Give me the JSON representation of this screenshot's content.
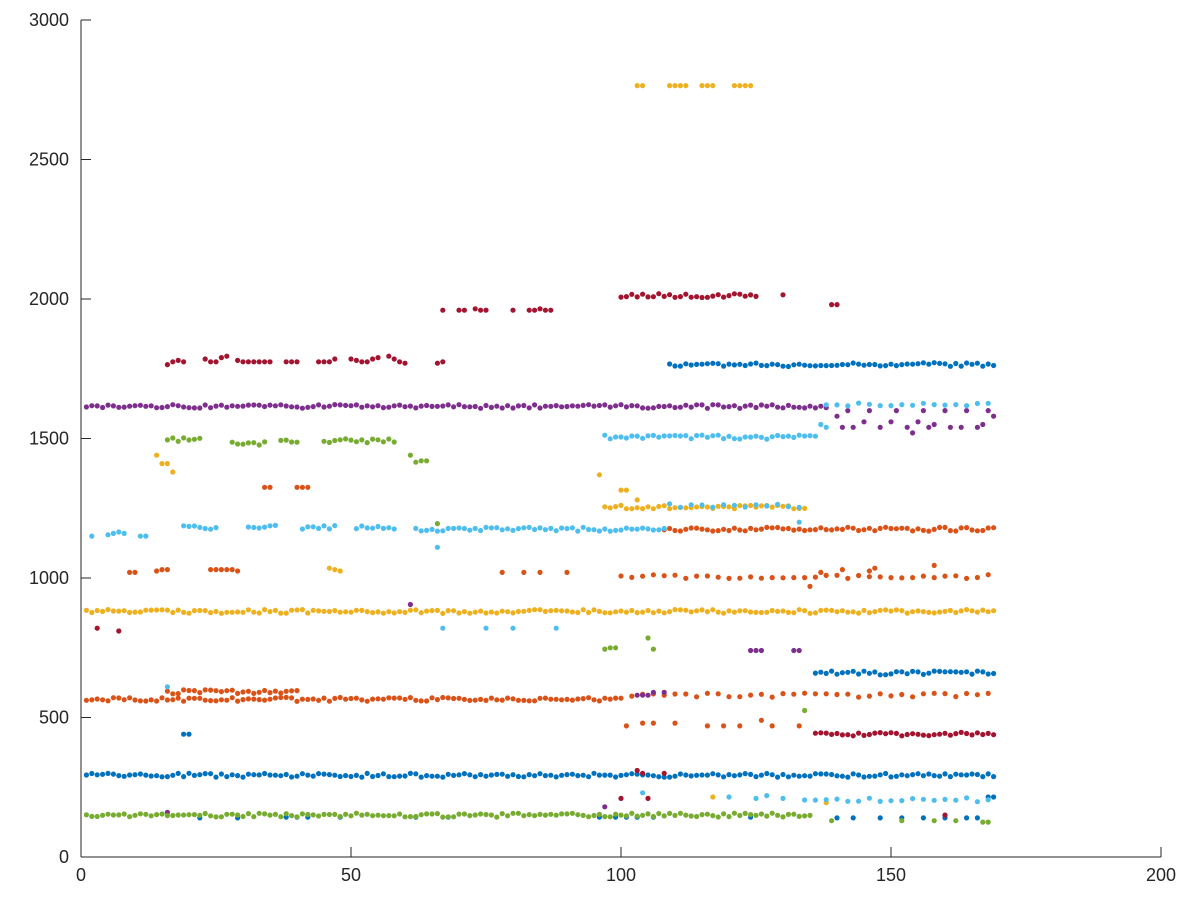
{
  "chart_data": {
    "type": "scatter",
    "title": "",
    "xlabel": "",
    "ylabel": "",
    "xlim": [
      0,
      200
    ],
    "ylim": [
      0,
      3000
    ],
    "xticks": [
      "0",
      "50",
      "100",
      "150",
      "200"
    ],
    "yticks": [
      "0",
      "500",
      "1000",
      "1500",
      "2000",
      "2500",
      "3000"
    ],
    "grid": false,
    "legend": "none",
    "series": [
      {
        "color": "#0072BD",
        "segments": [
          {
            "x0": 1,
            "x1": 169,
            "y": 293,
            "step": 1
          },
          {
            "x0": 109,
            "x1": 169,
            "y": 1765,
            "step": 1
          },
          {
            "x0": 136,
            "x1": 169,
            "y": 660,
            "step": 1
          }
        ],
        "points": [
          [
            19,
            440
          ],
          [
            20,
            440
          ],
          [
            22,
            140
          ],
          [
            29,
            140
          ],
          [
            38,
            143
          ],
          [
            40,
            143
          ],
          [
            42,
            143
          ],
          [
            48,
            143
          ],
          [
            62,
            143
          ],
          [
            68,
            143
          ],
          [
            96,
            143
          ],
          [
            99,
            143
          ],
          [
            101,
            143
          ],
          [
            103,
            143
          ],
          [
            106,
            143
          ],
          [
            124,
            143
          ],
          [
            140,
            140
          ],
          [
            143,
            140
          ],
          [
            148,
            140
          ],
          [
            152,
            140
          ],
          [
            156,
            140
          ],
          [
            160,
            140
          ],
          [
            164,
            140
          ],
          [
            166,
            140
          ],
          [
            168,
            215
          ],
          [
            169,
            215
          ]
        ]
      },
      {
        "color": "#D95319",
        "segments": [
          {
            "x0": 1,
            "x1": 100,
            "y": 565,
            "step": 1
          },
          {
            "x0": 16,
            "x1": 40,
            "y": 592,
            "step": 1
          },
          {
            "x0": 100,
            "x1": 169,
            "y": 1005,
            "step": 2
          },
          {
            "x0": 108,
            "x1": 169,
            "y": 1175,
            "step": 1
          },
          {
            "x0": 102,
            "x1": 169,
            "y": 580,
            "step": 2
          }
        ],
        "points": [
          [
            9,
            1020
          ],
          [
            10,
            1020
          ],
          [
            14,
            1025
          ],
          [
            15,
            1030
          ],
          [
            16,
            1030
          ],
          [
            24,
            1030
          ],
          [
            25,
            1030
          ],
          [
            26,
            1030
          ],
          [
            27,
            1030
          ],
          [
            28,
            1030
          ],
          [
            29,
            1025
          ],
          [
            34,
            1325
          ],
          [
            35,
            1325
          ],
          [
            40,
            1325
          ],
          [
            41,
            1325
          ],
          [
            42,
            1325
          ],
          [
            78,
            1020
          ],
          [
            82,
            1020
          ],
          [
            85,
            1020
          ],
          [
            90,
            1020
          ],
          [
            104,
            480
          ],
          [
            106,
            480
          ],
          [
            110,
            480
          ],
          [
            116,
            470
          ],
          [
            119,
            470
          ],
          [
            122,
            470
          ],
          [
            126,
            490
          ],
          [
            128,
            470
          ],
          [
            133,
            470
          ],
          [
            135,
            970
          ],
          [
            137,
            1020
          ],
          [
            141,
            1030
          ],
          [
            146,
            1025
          ],
          [
            147,
            1035
          ],
          [
            158,
            1045
          ],
          [
            101,
            470
          ]
        ]
      },
      {
        "color": "#EDB120",
        "segments": [
          {
            "x0": 1,
            "x1": 169,
            "y": 880,
            "step": 1
          },
          {
            "x0": 97,
            "x1": 134,
            "y": 1255,
            "step": 1
          }
        ],
        "points": [
          [
            14,
            1440
          ],
          [
            15,
            1410
          ],
          [
            16,
            1410
          ],
          [
            17,
            1380
          ],
          [
            46,
            1035
          ],
          [
            47,
            1030
          ],
          [
            48,
            1025
          ],
          [
            96,
            1370
          ],
          [
            100,
            1315
          ],
          [
            101,
            1315
          ],
          [
            103,
            1280
          ],
          [
            103,
            2765
          ],
          [
            104,
            2765
          ],
          [
            109,
            2765
          ],
          [
            110,
            2765
          ],
          [
            111,
            2765
          ],
          [
            112,
            2765
          ],
          [
            115,
            2765
          ],
          [
            116,
            2765
          ],
          [
            117,
            2765
          ],
          [
            121,
            2765
          ],
          [
            122,
            2765
          ],
          [
            123,
            2765
          ],
          [
            124,
            2765
          ],
          [
            117,
            215
          ],
          [
            138,
            195
          ]
        ]
      },
      {
        "color": "#7E2F8E",
        "segments": [
          {
            "x0": 1,
            "x1": 138,
            "y": 1615,
            "step": 1
          }
        ],
        "points": [
          [
            61,
            905
          ],
          [
            97,
            180
          ],
          [
            104,
            580
          ],
          [
            105,
            580
          ],
          [
            106,
            590
          ],
          [
            108,
            590
          ],
          [
            124,
            740
          ],
          [
            125,
            740
          ],
          [
            126,
            740
          ],
          [
            132,
            740
          ],
          [
            133,
            740
          ],
          [
            103,
            580
          ],
          [
            140,
            1580
          ],
          [
            141,
            1540
          ],
          [
            142,
            1600
          ],
          [
            143,
            1540
          ],
          [
            145,
            1560
          ],
          [
            146,
            1600
          ],
          [
            148,
            1540
          ],
          [
            150,
            1560
          ],
          [
            151,
            1600
          ],
          [
            153,
            1540
          ],
          [
            154,
            1520
          ],
          [
            155,
            1560
          ],
          [
            156,
            1600
          ],
          [
            157,
            1540
          ],
          [
            158,
            1550
          ],
          [
            160,
            1600
          ],
          [
            161,
            1540
          ],
          [
            163,
            1540
          ],
          [
            164,
            1600
          ],
          [
            166,
            1540
          ],
          [
            167,
            1550
          ],
          [
            168,
            1600
          ],
          [
            169,
            1580
          ],
          [
            16,
            160
          ]
        ]
      },
      {
        "color": "#77AC30",
        "segments": [
          {
            "x0": 1,
            "x1": 135,
            "y": 150,
            "step": 1
          },
          {
            "x0": 16,
            "x1": 22,
            "y": 1495,
            "step": 1
          },
          {
            "x0": 28,
            "x1": 34,
            "y": 1482,
            "step": 1
          },
          {
            "x0": 37,
            "x1": 40,
            "y": 1488,
            "step": 1
          },
          {
            "x0": 45,
            "x1": 58,
            "y": 1492,
            "step": 1
          }
        ],
        "points": [
          [
            61,
            1440
          ],
          [
            62,
            1415
          ],
          [
            63,
            1420
          ],
          [
            64,
            1420
          ],
          [
            66,
            1195
          ],
          [
            97,
            745
          ],
          [
            98,
            750
          ],
          [
            99,
            750
          ],
          [
            105,
            785
          ],
          [
            106,
            745
          ],
          [
            134,
            525
          ],
          [
            139,
            130
          ],
          [
            152,
            130
          ],
          [
            158,
            130
          ],
          [
            162,
            130
          ],
          [
            167,
            125
          ],
          [
            168,
            125
          ]
        ]
      },
      {
        "color": "#4DBEEE",
        "segments": [
          {
            "x0": 19,
            "x1": 25,
            "y": 1182,
            "step": 1
          },
          {
            "x0": 31,
            "x1": 36,
            "y": 1182,
            "step": 1
          },
          {
            "x0": 41,
            "x1": 47,
            "y": 1182,
            "step": 1
          },
          {
            "x0": 51,
            "x1": 58,
            "y": 1182,
            "step": 1
          },
          {
            "x0": 62,
            "x1": 108,
            "y": 1175,
            "step": 1
          },
          {
            "x0": 97,
            "x1": 136,
            "y": 1505,
            "step": 1
          },
          {
            "x0": 109,
            "x1": 134,
            "y": 1260,
            "step": 2
          },
          {
            "x0": 138,
            "x1": 169,
            "y": 1620,
            "step": 2
          },
          {
            "x0": 134,
            "x1": 169,
            "y": 205,
            "step": 2
          }
        ],
        "points": [
          [
            2,
            1150
          ],
          [
            5,
            1155
          ],
          [
            6,
            1160
          ],
          [
            7,
            1165
          ],
          [
            8,
            1160
          ],
          [
            11,
            1150
          ],
          [
            12,
            1150
          ],
          [
            16,
            610
          ],
          [
            66,
            1110
          ],
          [
            67,
            820
          ],
          [
            75,
            820
          ],
          [
            80,
            820
          ],
          [
            88,
            820
          ],
          [
            104,
            230
          ],
          [
            120,
            215
          ],
          [
            125,
            210
          ],
          [
            127,
            220
          ],
          [
            130,
            210
          ],
          [
            133,
            1200
          ],
          [
            137,
            1550
          ],
          [
            138,
            1540
          ]
        ]
      },
      {
        "color": "#A2142F",
        "segments": [
          {
            "x0": 100,
            "x1": 125,
            "y": 2012,
            "step": 1
          },
          {
            "x0": 136,
            "x1": 169,
            "y": 440,
            "step": 1
          }
        ],
        "points": [
          [
            3,
            820
          ],
          [
            7,
            810
          ],
          [
            16,
            1765
          ],
          [
            17,
            1775
          ],
          [
            18,
            1780
          ],
          [
            19,
            1775
          ],
          [
            23,
            1785
          ],
          [
            24,
            1775
          ],
          [
            25,
            1775
          ],
          [
            26,
            1790
          ],
          [
            27,
            1795
          ],
          [
            29,
            1780
          ],
          [
            30,
            1775
          ],
          [
            31,
            1775
          ],
          [
            32,
            1775
          ],
          [
            33,
            1775
          ],
          [
            34,
            1775
          ],
          [
            35,
            1775
          ],
          [
            38,
            1775
          ],
          [
            39,
            1775
          ],
          [
            40,
            1775
          ],
          [
            44,
            1775
          ],
          [
            45,
            1775
          ],
          [
            46,
            1775
          ],
          [
            47,
            1785
          ],
          [
            50,
            1785
          ],
          [
            51,
            1780
          ],
          [
            52,
            1775
          ],
          [
            53,
            1775
          ],
          [
            54,
            1785
          ],
          [
            55,
            1790
          ],
          [
            57,
            1795
          ],
          [
            58,
            1785
          ],
          [
            59,
            1775
          ],
          [
            60,
            1770
          ],
          [
            66,
            1770
          ],
          [
            67,
            1775
          ],
          [
            67,
            1960
          ],
          [
            70,
            1960
          ],
          [
            71,
            1960
          ],
          [
            73,
            1965
          ],
          [
            74,
            1960
          ],
          [
            75,
            1960
          ],
          [
            80,
            1960
          ],
          [
            83,
            1960
          ],
          [
            84,
            1960
          ],
          [
            85,
            1965
          ],
          [
            86,
            1960
          ],
          [
            87,
            1960
          ],
          [
            100,
            210
          ],
          [
            103,
            310
          ],
          [
            104,
            300
          ],
          [
            105,
            210
          ],
          [
            108,
            300
          ],
          [
            130,
            2015
          ],
          [
            139,
            1980
          ],
          [
            140,
            1980
          ],
          [
            160,
            150
          ]
        ]
      }
    ]
  }
}
